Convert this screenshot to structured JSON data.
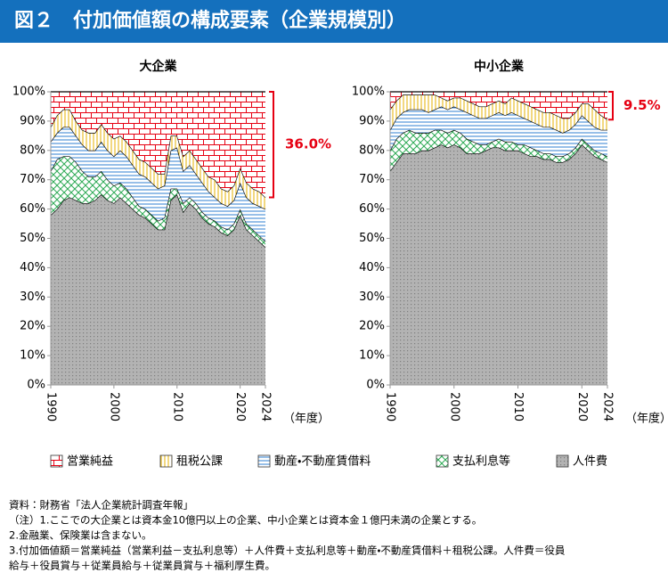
{
  "header": {
    "title": "図２　付加価値額の構成要素（企業規模別）"
  },
  "chart_data": [
    {
      "type": "stacked-area",
      "title": "大企業",
      "xlabel": "（年度）",
      "x": [
        1990,
        1991,
        1992,
        1993,
        1994,
        1995,
        1996,
        1997,
        1998,
        1999,
        2000,
        2001,
        2002,
        2003,
        2004,
        2005,
        2006,
        2007,
        2008,
        2009,
        2010,
        2011,
        2012,
        2013,
        2014,
        2015,
        2016,
        2017,
        2018,
        2019,
        2020,
        2021,
        2022,
        2023,
        2024
      ],
      "xlim": [
        1990,
        2024
      ],
      "xticks": [
        1990,
        2000,
        2010,
        2020,
        2024
      ],
      "ylim": [
        0,
        100
      ],
      "yticks": [
        {
          "value": 0,
          "label": "0%"
        },
        {
          "value": 10,
          "label": "10%"
        },
        {
          "value": 20,
          "label": "20%"
        },
        {
          "value": 30,
          "label": "30%"
        },
        {
          "value": 40,
          "label": "40%"
        },
        {
          "value": 50,
          "label": "50%"
        },
        {
          "value": 60,
          "label": "60%"
        },
        {
          "value": 70,
          "label": "70%"
        },
        {
          "value": 80,
          "label": "80%"
        },
        {
          "value": 90,
          "label": "90%"
        },
        {
          "value": 100,
          "label": "100%"
        }
      ],
      "annotation": "36.0%",
      "annotation_color": "#e60012",
      "series": [
        {
          "name": "人件費",
          "color": "#7f7f7f",
          "pattern": "dots",
          "values": [
            58,
            60,
            63,
            64,
            63,
            62,
            62,
            63,
            65,
            63,
            62,
            64,
            62,
            60,
            58,
            57,
            55,
            53,
            53,
            63,
            65,
            59,
            62,
            60,
            57,
            55,
            54,
            52,
            51,
            53,
            58,
            53,
            51,
            49,
            47
          ]
        },
        {
          "name": "支払利息等",
          "color": "#2eaa55",
          "pattern": "cross",
          "values": [
            15,
            17,
            15,
            14,
            13,
            11,
            9,
            8,
            8,
            7,
            6,
            5,
            5,
            4,
            3,
            3,
            3,
            3,
            4,
            4,
            2,
            3,
            2,
            2,
            2,
            2,
            2,
            2,
            2,
            2,
            2,
            2,
            2,
            2,
            2
          ]
        },
        {
          "name": "動産・不動産賃借料",
          "color": "#2f7fd0",
          "pattern": "hlines",
          "values": [
            10,
            9,
            10,
            10,
            9,
            9,
            9,
            9,
            10,
            10,
            10,
            11,
            11,
            11,
            11,
            11,
            11,
            11,
            11,
            13,
            14,
            11,
            11,
            10,
            10,
            9,
            8,
            8,
            8,
            8,
            9,
            9,
            9,
            10,
            11
          ]
        },
        {
          "name": "租税公課",
          "color": "#e6b000",
          "pattern": "vlines",
          "values": [
            5,
            6,
            6,
            6,
            5,
            5,
            6,
            6,
            6,
            6,
            6,
            5,
            5,
            5,
            5,
            5,
            5,
            5,
            4,
            5,
            4,
            5,
            5,
            5,
            5,
            5,
            6,
            5,
            5,
            5,
            5,
            5,
            5,
            5,
            4
          ]
        },
        {
          "name": "営業純益",
          "color": "#e60012",
          "pattern": "brick",
          "values": [
            12,
            8,
            6,
            6,
            10,
            13,
            14,
            14,
            11,
            14,
            16,
            15,
            17,
            20,
            23,
            24,
            26,
            28,
            28,
            15,
            15,
            22,
            20,
            23,
            26,
            29,
            30,
            33,
            34,
            32,
            26,
            31,
            33,
            34,
            36
          ]
        }
      ]
    },
    {
      "type": "stacked-area",
      "title": "中小企業",
      "xlabel": "（年度）",
      "x": [
        1990,
        1991,
        1992,
        1993,
        1994,
        1995,
        1996,
        1997,
        1998,
        1999,
        2000,
        2001,
        2002,
        2003,
        2004,
        2005,
        2006,
        2007,
        2008,
        2009,
        2010,
        2011,
        2012,
        2013,
        2014,
        2015,
        2016,
        2017,
        2018,
        2019,
        2020,
        2021,
        2022,
        2023,
        2024
      ],
      "xlim": [
        1990,
        2024
      ],
      "xticks": [
        1990,
        2000,
        2010,
        2020,
        2024
      ],
      "ylim": [
        0,
        100
      ],
      "yticks": [
        {
          "value": 0,
          "label": "0%"
        },
        {
          "value": 10,
          "label": "10%"
        },
        {
          "value": 20,
          "label": "20%"
        },
        {
          "value": 30,
          "label": "30%"
        },
        {
          "value": 40,
          "label": "40%"
        },
        {
          "value": 50,
          "label": "50%"
        },
        {
          "value": 60,
          "label": "60%"
        },
        {
          "value": 70,
          "label": "70%"
        },
        {
          "value": 80,
          "label": "80%"
        },
        {
          "value": 90,
          "label": "90%"
        },
        {
          "value": 100,
          "label": "100%"
        }
      ],
      "annotation": "9.5%",
      "annotation_color": "#e60012",
      "series": [
        {
          "name": "人件費",
          "color": "#7f7f7f",
          "pattern": "dots",
          "values": [
            73,
            76,
            79,
            79,
            79,
            80,
            80,
            81,
            82,
            81,
            82,
            81,
            79,
            79,
            79,
            80,
            81,
            81,
            80,
            80,
            80,
            79,
            78,
            78,
            77,
            77,
            76,
            76,
            77,
            79,
            82,
            80,
            78,
            77,
            76
          ]
        },
        {
          "name": "支払利息等",
          "color": "#2eaa55",
          "pattern": "cross",
          "values": [
            7,
            8,
            7,
            8,
            7,
            6,
            6,
            6,
            5,
            5,
            5,
            5,
            5,
            4,
            3,
            2,
            2,
            3,
            3,
            3,
            2,
            3,
            3,
            2,
            2,
            2,
            2,
            2,
            2,
            2,
            2,
            2,
            2,
            2,
            2
          ]
        },
        {
          "name": "動産・不動産賃借料",
          "color": "#2f7fd0",
          "pattern": "hlines",
          "values": [
            7,
            7,
            7,
            7,
            8,
            8,
            7,
            7,
            8,
            8,
            8,
            8,
            9,
            9,
            9,
            9,
            9,
            9,
            9,
            10,
            10,
            9,
            9,
            9,
            9,
            9,
            9,
            8,
            8,
            8,
            8,
            8,
            8,
            8,
            9
          ]
        },
        {
          "name": "租税公課",
          "color": "#e6b000",
          "pattern": "vlines",
          "values": [
            7,
            6,
            6,
            5,
            5,
            5,
            6,
            5,
            3,
            3,
            3,
            4,
            4,
            4,
            4,
            4,
            4,
            4,
            4,
            5,
            5,
            5,
            5,
            5,
            5,
            5,
            5,
            5,
            4,
            4,
            4,
            6,
            6,
            5,
            3.5
          ]
        },
        {
          "name": "営業純益",
          "color": "#e60012",
          "pattern": "brick",
          "values": [
            6,
            3,
            1,
            1,
            1,
            1,
            1,
            1,
            2,
            3,
            2,
            2,
            3,
            4,
            5,
            5,
            4,
            3,
            4,
            2,
            3,
            4,
            5,
            6,
            7,
            7,
            8,
            9,
            9,
            7,
            4,
            4,
            6,
            8,
            9.5
          ]
        }
      ]
    }
  ],
  "notes": [
    "資料：財務省「法人企業統計調査年報」",
    "（注）1.ここでの大企業とは資本金10億円以上の企業、中小企業とは資本金１億円未満の企業とする。",
    "2.金融業、保険業は含まない。",
    "3.付加価値額＝営業純益（営業利益－支払利息等）＋人件費＋支払利息等＋動産・不動産賃借料＋租税公課。人件費＝役員",
    "給与＋役員賞与＋従業員給与＋従業員賞与＋福利厚生費。"
  ]
}
